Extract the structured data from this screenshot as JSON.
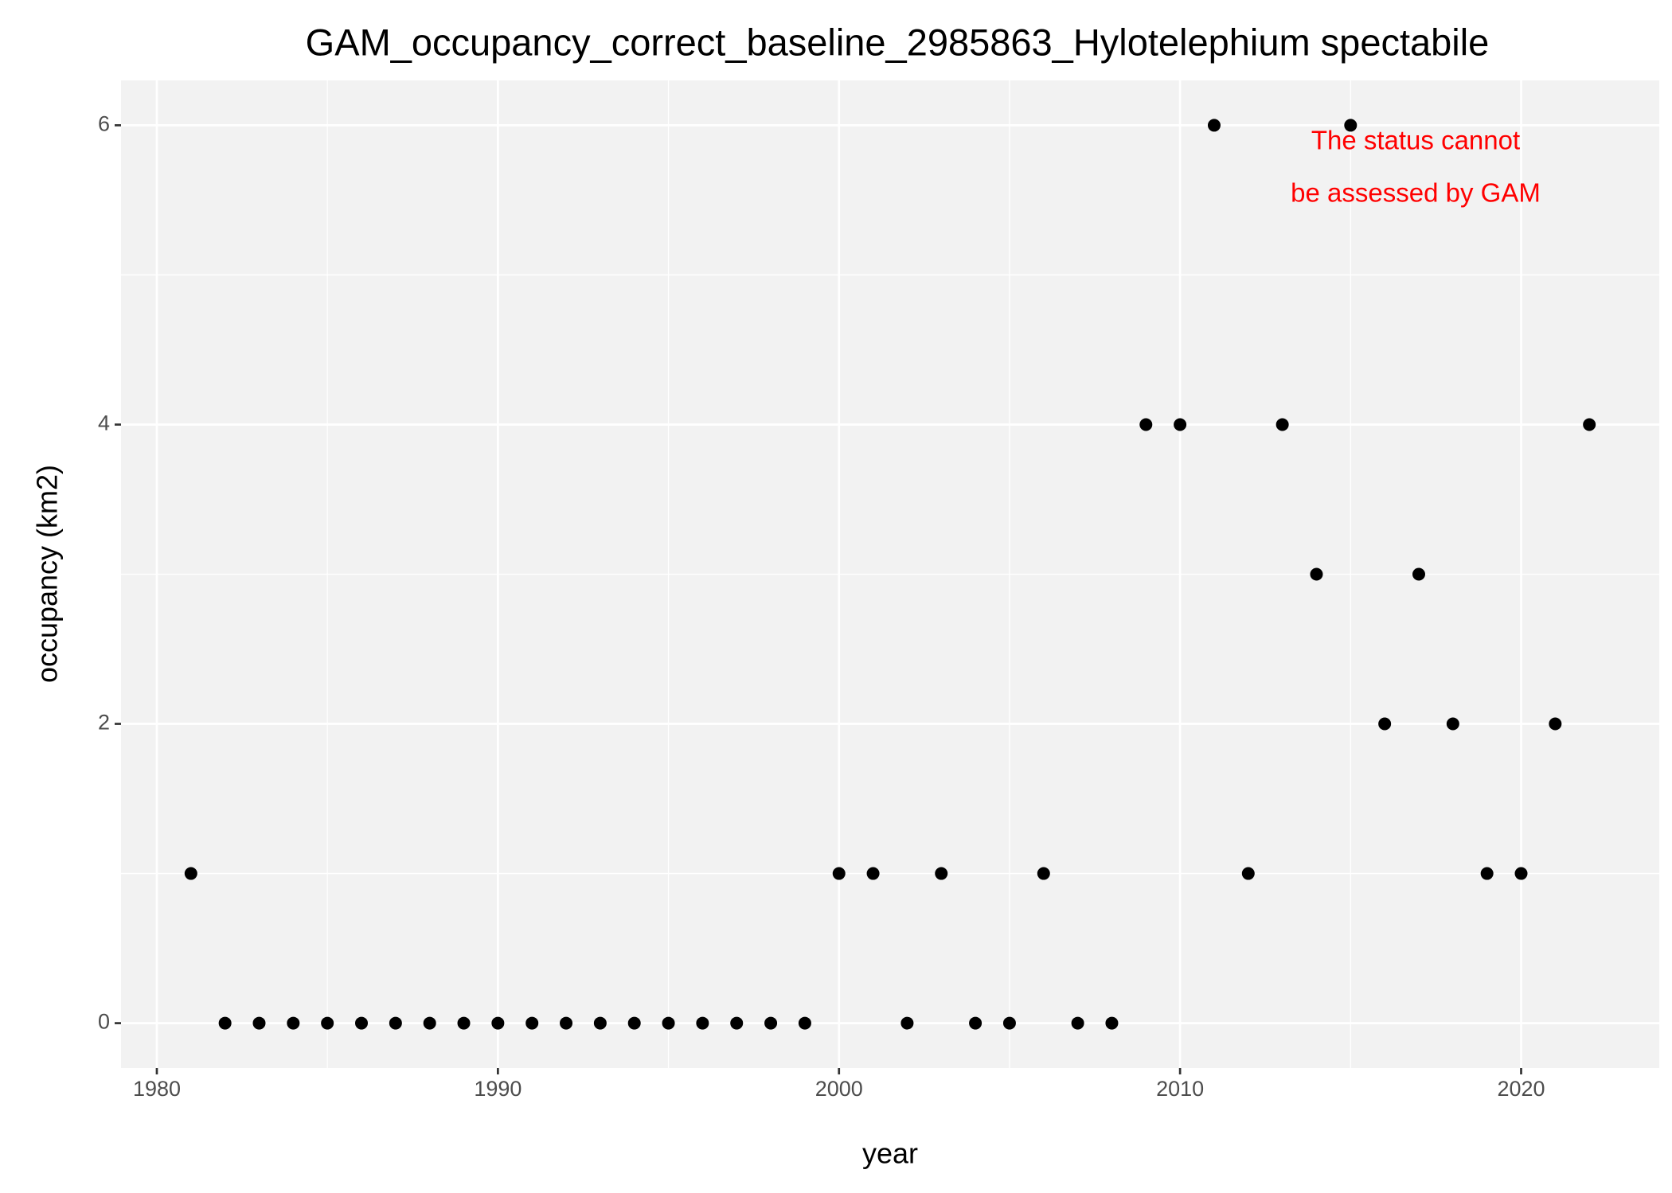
{
  "chart_data": {
    "type": "scatter",
    "title": "GAM_occupancy_correct_baseline_2985863_Hylotelephium spectabile",
    "x_label": "year",
    "y_label": "occupancy (km2)",
    "annotation": [
      "The status cannot",
      "be assessed by GAM"
    ],
    "annotation_color": "#ff0000",
    "x": [
      1981,
      1982,
      1983,
      1984,
      1985,
      1986,
      1987,
      1988,
      1989,
      1990,
      1991,
      1992,
      1993,
      1994,
      1995,
      1996,
      1997,
      1998,
      1999,
      2000,
      2001,
      2002,
      2003,
      2004,
      2005,
      2006,
      2007,
      2008,
      2009,
      2010,
      2011,
      2012,
      2013,
      2014,
      2015,
      2016,
      2017,
      2018,
      2019,
      2020,
      2021,
      2022
    ],
    "values": [
      1,
      0,
      0,
      0,
      0,
      0,
      0,
      0,
      0,
      0,
      0,
      0,
      0,
      0,
      0,
      0,
      0,
      0,
      0,
      1,
      1,
      0,
      1,
      0,
      0,
      1,
      0,
      0,
      4,
      4,
      6,
      1,
      4,
      3,
      6,
      2,
      3,
      2,
      1,
      1,
      2,
      4
    ],
    "color": "#000000",
    "xlim": [
      1978.95,
      2024.05
    ],
    "xticks": [
      1980,
      1990,
      2000,
      2010,
      2020
    ],
    "ylim": [
      -0.3,
      6.3
    ],
    "yticks": [
      0,
      2,
      4,
      6
    ],
    "grid": true
  }
}
